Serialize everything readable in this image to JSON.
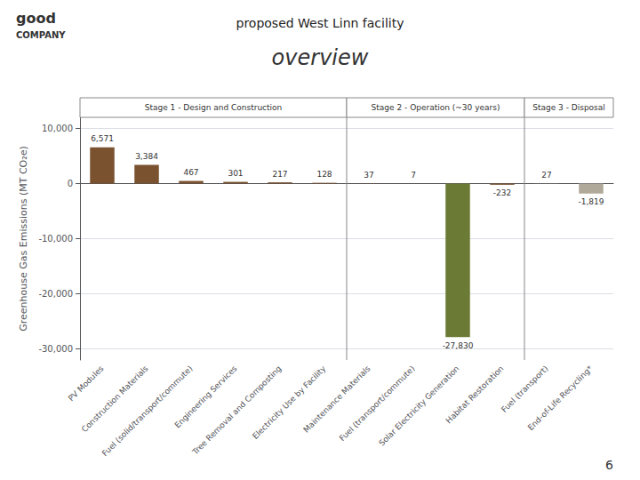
{
  "chart_data": {
    "type": "bar",
    "title": "overview",
    "subtitle": "proposed West Linn facility",
    "ylabel": "Greenhouse Gas Emissions (MT CO₂e)",
    "categories": [
      "PV Modules",
      "Construction Materials",
      "Fuel (solid/transport/commute)",
      "Engineering Services",
      "Tree Removal and Composting",
      "Electricity Use by Facility",
      "Maintenance Materials",
      "Fuel (transport/commute)",
      "Solar Electricity Generation",
      "Habitat Restoration",
      "Fuel (transport)",
      "End-of-Life Recycling*"
    ],
    "values": [
      6571,
      3384,
      467,
      301,
      217,
      128,
      37,
      7,
      -27830,
      -232,
      27,
      -1819
    ],
    "value_labels": [
      "6,571",
      "3,384",
      "467",
      "301",
      "217",
      "128",
      "37",
      "7",
      "-27,830",
      "-232",
      "27",
      "-1,819"
    ],
    "data_labels": true,
    "colors": [
      "#7a5230",
      "#7a5230",
      "#7a5230",
      "#7a5230",
      "#7a5230",
      "#7a5230",
      "#7a5230",
      "#7a5230",
      "#6b7a35",
      "#7a5230",
      "#b0a898",
      "#b0a898"
    ],
    "ylim": [
      -32000,
      12000
    ],
    "yticks": [
      {
        "value": -30000,
        "label": "-30,000"
      },
      {
        "value": -20000,
        "label": "-20,000"
      },
      {
        "value": -10000,
        "label": "-10,000"
      },
      0,
      {
        "value": 10000,
        "label": "10,000"
      }
    ],
    "grid": true,
    "annotations": [
      {
        "text": "good"
      },
      {
        "text": "COMPANY"
      },
      {
        "text": "Stage 1 - Design and Construction",
        "start": 0,
        "end": 6
      },
      {
        "text": "Stage 2 - Operation (~30 years)",
        "start": 6,
        "end": 10
      },
      {
        "text": "Stage 3 - Disposal",
        "start": 10,
        "end": 12
      },
      {
        "text": "6"
      }
    ]
  }
}
